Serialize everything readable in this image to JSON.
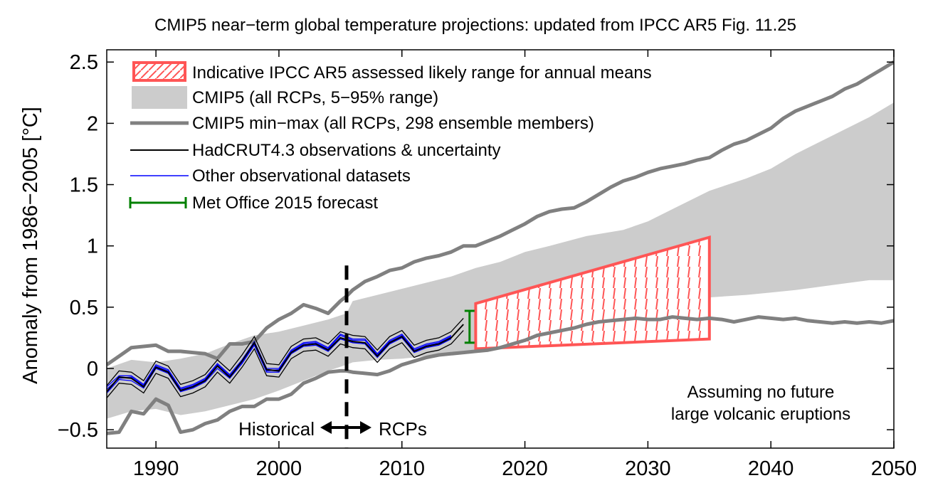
{
  "chart_data": {
    "type": "line",
    "title": "CMIP5 near−term global temperature projections: updated from IPCC AR5 Fig. 11.25",
    "xlabel": "",
    "ylabel": "Anomaly from 1986−2005  [°C]",
    "xlim": [
      1986,
      2050
    ],
    "ylim": [
      -0.65,
      2.6
    ],
    "x_ticks": [
      1990,
      2000,
      2010,
      2020,
      2030,
      2040,
      2050
    ],
    "y_ticks": [
      -0.5,
      0,
      0.5,
      1,
      1.5,
      2,
      2.5
    ],
    "y_tick_labels": [
      "−0.5",
      "0",
      "0.5",
      "1",
      "1.5",
      "2",
      "2.5"
    ],
    "grid": false,
    "legend_position": "top-left",
    "legend": [
      {
        "label": "Indicative IPCC AR5 assessed likely range for annual means",
        "color": "#ff5555",
        "style": "hatched-box"
      },
      {
        "label": "CMIP5 (all RCPs, 5−95% range)",
        "color": "#cccccc",
        "style": "filled-box"
      },
      {
        "label": "CMIP5 min−max (all RCPs, 298 ensemble members)",
        "color": "#808080",
        "style": "thick-line"
      },
      {
        "label": "HadCRUT4.3 observations & uncertainty",
        "color": "#000000",
        "style": "line"
      },
      {
        "label": "Other observational datasets",
        "color": "#0000ff",
        "style": "line"
      },
      {
        "label": "Met Office 2015 forecast",
        "color": "#008000",
        "style": "error-bar"
      }
    ],
    "cmip5_range_5_95": {
      "x": [
        1986,
        1988,
        1990,
        1992,
        1994,
        1996,
        1998,
        2000,
        2002,
        2004,
        2005.5,
        2006,
        2008,
        2010,
        2012,
        2014,
        2016,
        2018,
        2020,
        2022,
        2025,
        2028,
        2030,
        2032,
        2035,
        2038,
        2040,
        2042,
        2045,
        2048,
        2050
      ],
      "upper": [
        0.0,
        0.07,
        0.05,
        0.08,
        0.12,
        0.2,
        0.27,
        0.3,
        0.35,
        0.4,
        0.45,
        0.55,
        0.6,
        0.65,
        0.7,
        0.75,
        0.82,
        0.87,
        0.95,
        1.0,
        1.08,
        1.13,
        1.2,
        1.3,
        1.45,
        1.55,
        1.63,
        1.75,
        1.9,
        2.05,
        2.17
      ],
      "lower": [
        -0.41,
        -0.35,
        -0.33,
        -0.38,
        -0.35,
        -0.3,
        -0.25,
        -0.18,
        -0.1,
        -0.02,
        0.03,
        0.05,
        0.07,
        0.08,
        0.1,
        0.11,
        0.14,
        0.17,
        0.2,
        0.24,
        0.28,
        0.35,
        0.4,
        0.5,
        0.58,
        0.6,
        0.62,
        0.64,
        0.68,
        0.72,
        0.72
      ]
    },
    "cmip5_max": {
      "x": [
        1986,
        1987,
        1988,
        1989,
        1990,
        1991,
        1992,
        1993,
        1994,
        1995,
        1996,
        1997,
        1998,
        1999,
        2000,
        2001,
        2002,
        2003,
        2004,
        2005,
        2005.5,
        2006,
        2007,
        2008,
        2009,
        2010,
        2011,
        2012,
        2013,
        2014,
        2015,
        2016,
        2017,
        2018,
        2019,
        2020,
        2021,
        2022,
        2023,
        2024,
        2025,
        2026,
        2027,
        2028,
        2029,
        2030,
        2031,
        2032,
        2033,
        2034,
        2035,
        2036,
        2037,
        2038,
        2039,
        2040,
        2041,
        2042,
        2043,
        2044,
        2045,
        2046,
        2047,
        2048,
        2049,
        2050
      ],
      "y": [
        0.03,
        0.1,
        0.17,
        0.18,
        0.19,
        0.14,
        0.14,
        0.13,
        0.12,
        0.08,
        0.2,
        0.2,
        0.22,
        0.33,
        0.4,
        0.45,
        0.52,
        0.49,
        0.45,
        0.55,
        0.59,
        0.64,
        0.71,
        0.75,
        0.8,
        0.82,
        0.87,
        0.9,
        0.92,
        0.95,
        1.0,
        1.0,
        1.04,
        1.08,
        1.13,
        1.18,
        1.24,
        1.28,
        1.3,
        1.31,
        1.36,
        1.42,
        1.48,
        1.53,
        1.56,
        1.6,
        1.63,
        1.65,
        1.67,
        1.7,
        1.72,
        1.78,
        1.83,
        1.86,
        1.91,
        1.96,
        2.04,
        2.1,
        2.14,
        2.18,
        2.22,
        2.28,
        2.32,
        2.38,
        2.44,
        2.5
      ]
    },
    "cmip5_min": {
      "x": [
        1986,
        1987,
        1988,
        1989,
        1990,
        1991,
        1992,
        1993,
        1994,
        1995,
        1996,
        1997,
        1998,
        1999,
        2000,
        2001,
        2002,
        2003,
        2004,
        2005,
        2005.5,
        2006,
        2007,
        2008,
        2009,
        2010,
        2011,
        2012,
        2013,
        2014,
        2015,
        2016,
        2017,
        2018,
        2019,
        2020,
        2021,
        2022,
        2023,
        2024,
        2025,
        2026,
        2027,
        2028,
        2029,
        2030,
        2031,
        2032,
        2033,
        2034,
        2035,
        2036,
        2037,
        2038,
        2039,
        2040,
        2041,
        2042,
        2043,
        2044,
        2045,
        2046,
        2047,
        2048,
        2049,
        2050
      ],
      "y": [
        -0.53,
        -0.52,
        -0.35,
        -0.37,
        -0.25,
        -0.3,
        -0.52,
        -0.5,
        -0.45,
        -0.42,
        -0.35,
        -0.31,
        -0.31,
        -0.25,
        -0.25,
        -0.21,
        -0.12,
        -0.08,
        -0.03,
        -0.02,
        -0.02,
        -0.03,
        -0.04,
        -0.05,
        -0.02,
        0.03,
        0.06,
        0.09,
        0.11,
        0.12,
        0.13,
        0.14,
        0.15,
        0.17,
        0.2,
        0.23,
        0.27,
        0.29,
        0.31,
        0.33,
        0.36,
        0.38,
        0.39,
        0.4,
        0.41,
        0.4,
        0.4,
        0.42,
        0.41,
        0.4,
        0.41,
        0.4,
        0.38,
        0.4,
        0.42,
        0.41,
        0.4,
        0.41,
        0.39,
        0.38,
        0.37,
        0.38,
        0.37,
        0.38,
        0.37,
        0.39
      ]
    },
    "hadcrut4_observations": {
      "x": [
        1986,
        1987,
        1988,
        1989,
        1990,
        1991,
        1992,
        1993,
        1994,
        1995,
        1996,
        1997,
        1998,
        1999,
        2000,
        2001,
        2002,
        2003,
        2004,
        2005,
        2006,
        2007,
        2008,
        2009,
        2010,
        2011,
        2012,
        2013,
        2014,
        2015
      ],
      "y": [
        -0.19,
        -0.07,
        -0.08,
        -0.15,
        0.01,
        -0.03,
        -0.18,
        -0.15,
        -0.1,
        0.02,
        -0.07,
        0.06,
        0.21,
        -0.01,
        -0.02,
        0.13,
        0.19,
        0.2,
        0.15,
        0.25,
        0.22,
        0.21,
        0.1,
        0.21,
        0.26,
        0.14,
        0.18,
        0.2,
        0.25,
        0.36
      ],
      "uncertainty": 0.05
    },
    "other_observational_datasets": [
      {
        "x": [
          1986,
          1987,
          1988,
          1989,
          1990,
          1991,
          1992,
          1993,
          1994,
          1995,
          1996,
          1997,
          1998,
          1999,
          2000,
          2001,
          2002,
          2003,
          2004,
          2005,
          2006,
          2007,
          2008,
          2009,
          2010,
          2011,
          2012,
          2013,
          2014
        ],
        "y": [
          -0.17,
          -0.08,
          -0.07,
          -0.14,
          0.02,
          -0.02,
          -0.17,
          -0.14,
          -0.09,
          0.03,
          -0.06,
          0.05,
          0.2,
          -0.02,
          -0.01,
          0.14,
          0.2,
          0.21,
          0.16,
          0.27,
          0.23,
          0.23,
          0.11,
          0.22,
          0.27,
          0.15,
          0.19,
          0.21,
          0.26
        ]
      },
      {
        "x": [
          1986,
          1987,
          1988,
          1989,
          1990,
          1991,
          1992,
          1993,
          1994,
          1995,
          1996,
          1997,
          1998,
          1999,
          2000,
          2001,
          2002,
          2003,
          2004,
          2005,
          2006,
          2007,
          2008,
          2009,
          2010,
          2011,
          2012,
          2013,
          2014
        ],
        "y": [
          -0.2,
          -0.09,
          -0.1,
          -0.16,
          0.0,
          -0.04,
          -0.19,
          -0.16,
          -0.11,
          0.0,
          -0.08,
          0.04,
          0.19,
          -0.03,
          -0.03,
          0.12,
          0.18,
          0.19,
          0.14,
          0.24,
          0.21,
          0.2,
          0.09,
          0.2,
          0.25,
          0.13,
          0.17,
          0.19,
          0.24
        ]
      },
      {
        "x": [
          1986,
          1987,
          1988,
          1989,
          1990,
          1991,
          1992,
          1993,
          1994,
          1995,
          1996,
          1997,
          1998,
          1999,
          2000,
          2001,
          2002,
          2003,
          2004,
          2005,
          2006,
          2007,
          2008,
          2009,
          2010,
          2011,
          2012,
          2013,
          2014
        ],
        "y": [
          -0.15,
          -0.06,
          -0.06,
          -0.13,
          0.03,
          -0.01,
          -0.16,
          -0.13,
          -0.08,
          0.04,
          -0.05,
          0.07,
          0.22,
          0.0,
          0.0,
          0.15,
          0.21,
          0.22,
          0.17,
          0.28,
          0.24,
          0.24,
          0.12,
          0.23,
          0.28,
          0.16,
          0.2,
          0.22,
          0.27
        ]
      }
    ],
    "met_office_2015_forecast": {
      "x": 2015.5,
      "low": 0.21,
      "high": 0.47
    },
    "ipcc_ar5_likely_range": {
      "x": [
        2016,
        2035
      ],
      "lower": [
        0.16,
        0.24
      ],
      "upper": [
        0.53,
        1.07
      ]
    },
    "period_divider": {
      "x": 2005.5
    },
    "annotations": {
      "historical": "Historical",
      "rcps": "RCPs",
      "volcanic_line1": "Assuming no future",
      "volcanic_line2": "large volcanic eruptions"
    },
    "colors": {
      "cmip5_range": "#cccccc",
      "min_max": "#808080",
      "observations": "#000000",
      "other_datasets": "#0000ff",
      "forecast": "#008000",
      "ipcc_range": "#ff5555"
    }
  }
}
